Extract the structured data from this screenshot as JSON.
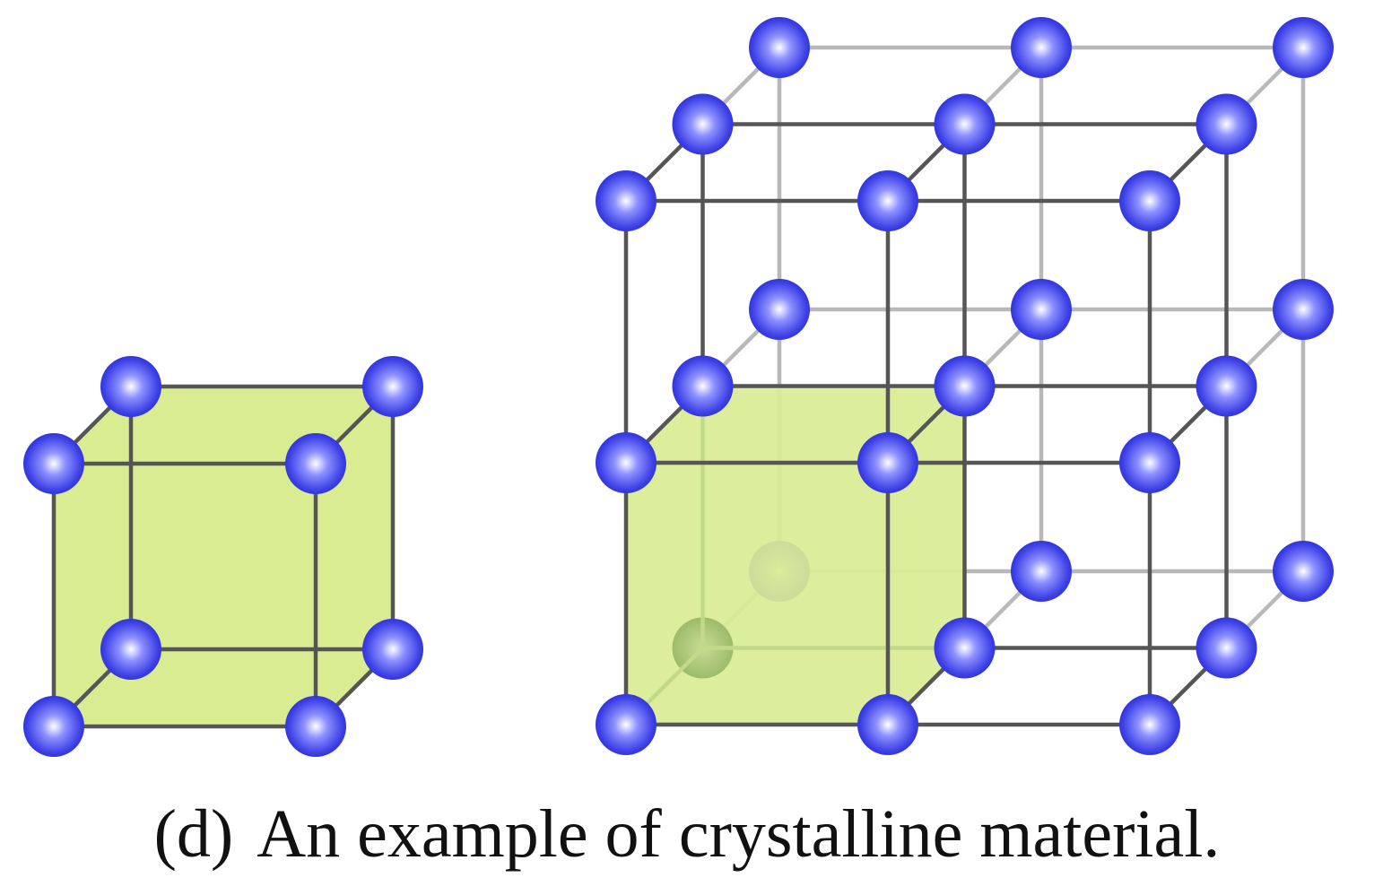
{
  "caption": {
    "label": "(d)",
    "text": "An example of crystalline material."
  },
  "colors": {
    "atom_light": "#ffffff",
    "atom_mid": "#6f73ff",
    "atom_dark": "#2b2fd9",
    "atom_hidden": "#9fbf6a",
    "cell_fill": "#d9ec92",
    "edge_front": "#555555",
    "edge_back": "#b8b8b8"
  },
  "diagrams": [
    {
      "name": "unit-cell",
      "description_visible": false
    },
    {
      "name": "crystal-lattice",
      "grid": [
        3,
        3,
        3
      ]
    }
  ]
}
